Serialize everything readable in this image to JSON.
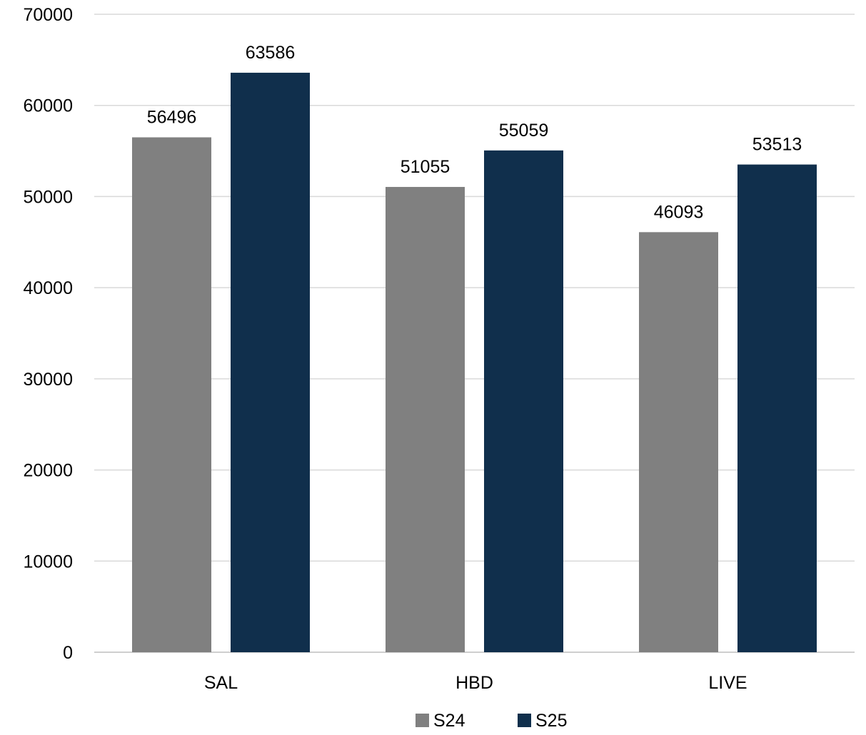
{
  "chart_data": {
    "type": "bar",
    "title": "",
    "xlabel": "",
    "ylabel": "",
    "categories": [
      "SAL",
      "HBD",
      "LIVE"
    ],
    "series": [
      {
        "name": "S24",
        "values": [
          56496,
          51055,
          46093
        ],
        "color": "#808080"
      },
      {
        "name": "S25",
        "values": [
          63586,
          55059,
          53513
        ],
        "color": "#102f4c"
      }
    ],
    "ylim": [
      0,
      70000
    ],
    "yticks": [
      0,
      10000,
      20000,
      30000,
      40000,
      50000,
      60000,
      70000
    ],
    "grid": true,
    "legend": "bottom-center",
    "data_labels": true
  }
}
